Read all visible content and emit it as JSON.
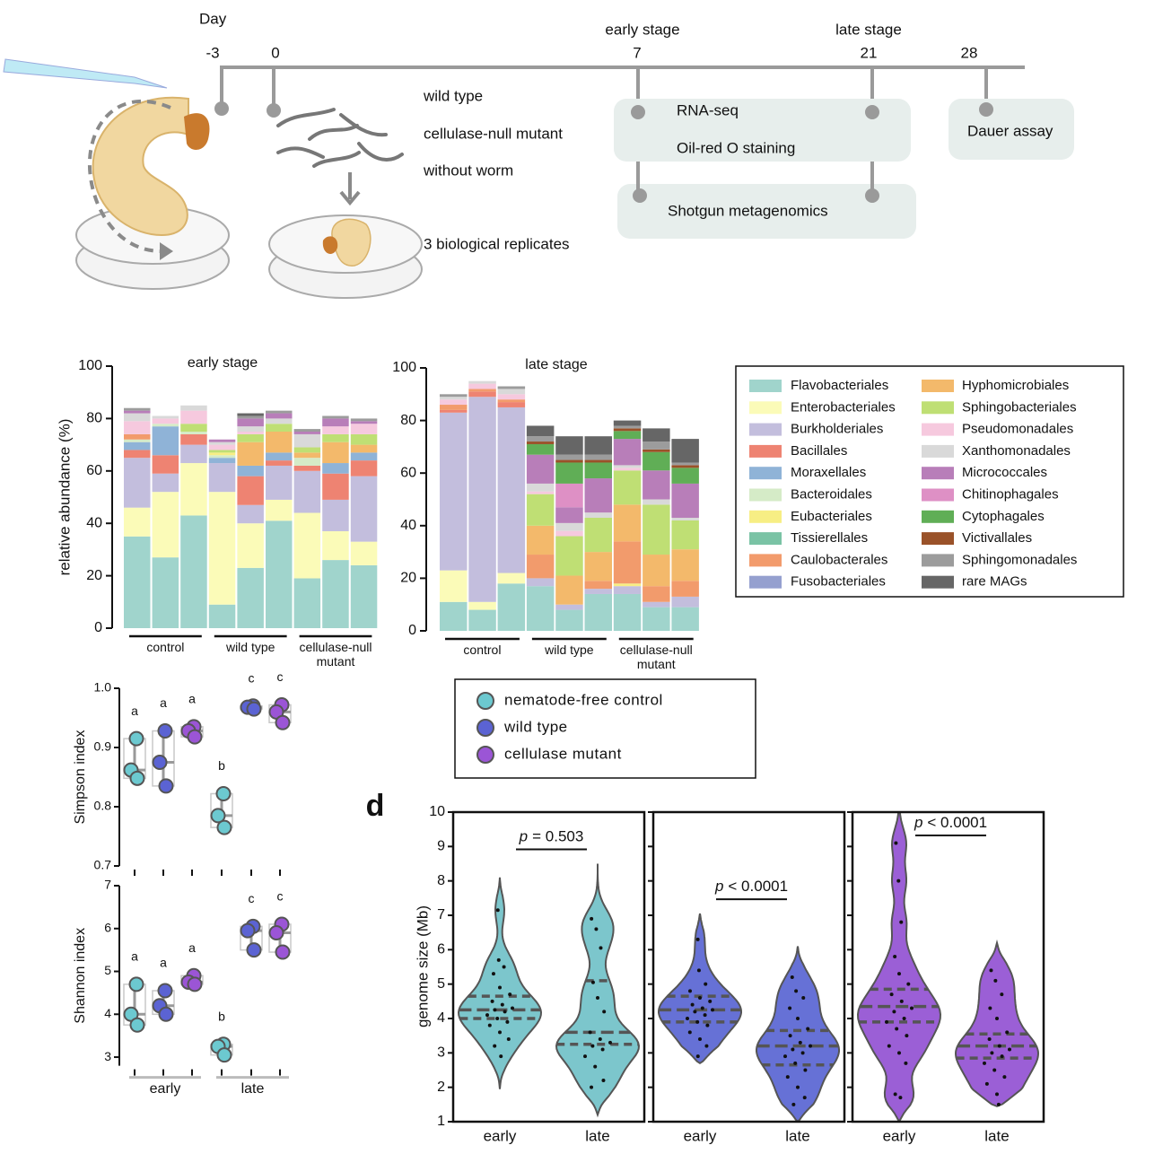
{
  "diagram": {
    "day_label": "Day",
    "days": [
      "-3",
      "0",
      "7",
      "21",
      "28"
    ],
    "stages": [
      "early stage",
      "late stage"
    ],
    "conditions": [
      "wild type",
      "cellulase-null mutant",
      "without worm"
    ],
    "replicates": "3 biological replicates",
    "assays": [
      "RNA-seq",
      "Oil-red O staining",
      "Shotgun metagenomics",
      "Dauer assay"
    ]
  },
  "chart_data": [
    {
      "type": "bar",
      "stacked": true,
      "y_label": "relative abundance (%)",
      "panels": [
        {
          "title": "early stage"
        },
        {
          "title": "late stage"
        }
      ],
      "groups": [
        "control",
        "wild type",
        "cellulase-null mutant"
      ],
      "ylim": [
        0,
        100
      ],
      "yticks": [
        0,
        20,
        40,
        60,
        80,
        100
      ],
      "series": [
        {
          "name": "Flavobacteriales",
          "color": "#a0d4cc",
          "values": [
            [
              35,
              27,
              43,
              9,
              23,
              41,
              19,
              26,
              24
            ],
            [
              11,
              8,
              18,
              17,
              8,
              14,
              14,
              9,
              9
            ]
          ]
        },
        {
          "name": "Enterobacteriales",
          "color": "#fbfbb8",
          "values": [
            [
              11,
              25,
              20,
              43,
              17,
              8,
              25,
              11,
              9
            ],
            [
              12,
              3,
              4,
              0,
              0,
              0,
              0,
              0,
              0
            ]
          ]
        },
        {
          "name": "Burkholderiales",
          "color": "#c3bedd",
          "values": [
            [
              19,
              7,
              7,
              11,
              7,
              13,
              16,
              12,
              25
            ],
            [
              60,
              78,
              63,
              3,
              2,
              2,
              3,
              2,
              4
            ]
          ]
        },
        {
          "name": "Bacillales",
          "color": "#ee8372",
          "values": [
            [
              3,
              7,
              4,
              0,
              11,
              2,
              2,
              10,
              6
            ],
            [
              1,
              2,
              2,
              0,
              0,
              0,
              0,
              0,
              0
            ]
          ]
        },
        {
          "name": "Moraxellales",
          "color": "#8fb3d7",
          "values": [
            [
              3,
              11,
              0,
              2,
              4,
              3,
              0,
              4,
              3
            ],
            [
              0,
              0,
              0,
              0,
              0,
              0,
              0,
              0,
              0
            ]
          ]
        },
        {
          "name": "Bacteroidales",
          "color": "#d5ebc7",
          "values": [
            [
              1,
              1,
              1,
              1,
              0,
              0,
              3,
              0,
              0
            ],
            [
              0,
              0,
              0,
              0,
              0,
              0,
              0,
              0,
              0
            ]
          ]
        },
        {
          "name": "Eubacteriales",
          "color": "#f7ee84",
          "values": [
            [
              0,
              0,
              0,
              1,
              0,
              0,
              0,
              0,
              0
            ],
            [
              0,
              0,
              0,
              0,
              0,
              0,
              1,
              0,
              0
            ]
          ]
        },
        {
          "name": "Tissierellales",
          "color": "#7ac3a5",
          "values": [
            [
              0,
              0,
              0,
              0,
              0,
              0,
              0,
              0,
              0
            ],
            [
              0,
              0,
              0,
              0,
              0,
              0,
              0,
              0,
              0
            ]
          ]
        },
        {
          "name": "Caulobacterales",
          "color": "#f29b6c",
          "values": [
            [
              2,
              0,
              0,
              0,
              0,
              0,
              0,
              0,
              0
            ],
            [
              2,
              1,
              1,
              9,
              0,
              3,
              16,
              6,
              6
            ]
          ]
        },
        {
          "name": "Fusobacteriales",
          "color": "#95a0cf",
          "values": [
            [
              0,
              0,
              0,
              0,
              0,
              0,
              0,
              0,
              0
            ],
            [
              0,
              0,
              0,
              0,
              0,
              0,
              0,
              0,
              0
            ]
          ]
        },
        {
          "name": "Hyphomicrobiales",
          "color": "#f3b96b",
          "values": [
            [
              0,
              0,
              0,
              0,
              9,
              8,
              2,
              8,
              3
            ],
            [
              0,
              0,
              0,
              11,
              11,
              11,
              14,
              12,
              12
            ]
          ]
        },
        {
          "name": "Sphingobacteriales",
          "color": "#bfdf74",
          "values": [
            [
              0,
              0,
              3,
              1,
              3,
              3,
              2,
              3,
              4
            ],
            [
              0,
              0,
              0,
              12,
              15,
              13,
              13,
              19,
              11
            ]
          ]
        },
        {
          "name": "Pseudomonadales",
          "color": "#f6c9de",
          "values": [
            [
              5,
              2,
              5,
              2,
              1,
              0,
              0,
              3,
              4
            ],
            [
              2,
              2,
              2,
              1,
              2,
              0,
              1,
              0,
              0
            ]
          ]
        },
        {
          "name": "Xanthomonadales",
          "color": "#d9d9d9",
          "values": [
            [
              3,
              1,
              2,
              1,
              2,
              2,
              5,
              0,
              0
            ],
            [
              1,
              1,
              2,
              3,
              3,
              2,
              1,
              2,
              1
            ]
          ]
        },
        {
          "name": "Micrococcales",
          "color": "#b87eb9",
          "values": [
            [
              1,
              0,
              0,
              1,
              3,
              2,
              1,
              3,
              1
            ],
            [
              0,
              0,
              0,
              11,
              6,
              13,
              10,
              11,
              13
            ]
          ]
        },
        {
          "name": "Chitinophagales",
          "color": "#de90c5",
          "values": [
            [
              0,
              0,
              0,
              0,
              0,
              0,
              0,
              0,
              0
            ],
            [
              0,
              0,
              0,
              0,
              9,
              0,
              0,
              0,
              0
            ]
          ]
        },
        {
          "name": "Cytophagales",
          "color": "#60ae56",
          "values": [
            [
              0,
              0,
              0,
              0,
              0,
              0,
              0,
              0,
              0
            ],
            [
              0,
              0,
              0,
              4,
              8,
              6,
              3,
              7,
              6
            ]
          ]
        },
        {
          "name": "Victivallales",
          "color": "#9a5229",
          "values": [
            [
              0,
              0,
              0,
              0,
              0,
              0,
              0,
              0,
              0
            ],
            [
              0,
              0,
              0,
              1,
              1,
              1,
              1,
              1,
              1
            ]
          ]
        },
        {
          "name": "Sphingomonadales",
          "color": "#9c9c9c",
          "values": [
            [
              1,
              0,
              0,
              0,
              1,
              1,
              1,
              1,
              1
            ],
            [
              1,
              0,
              1,
              2,
              2,
              2,
              1,
              3,
              1
            ]
          ]
        },
        {
          "name": "rare MAGs",
          "color": "#666666",
          "values": [
            [
              0,
              0,
              0,
              0,
              1,
              0,
              0,
              0,
              0
            ],
            [
              0,
              0,
              0,
              4,
              7,
              7,
              2,
              5,
              9
            ]
          ]
        }
      ]
    },
    {
      "type": "dot",
      "y_label": "Simpson index",
      "ylim": [
        0.7,
        1
      ],
      "yticks": [
        0.7,
        0.8,
        0.9,
        {
          "value": 1,
          "label": "1.0"
        }
      ],
      "letters": [
        "a",
        "a",
        "a",
        "b",
        "c",
        "c"
      ],
      "series": [
        {
          "name": "nematode-free control",
          "color": "#6cc9d0",
          "values": [
            [
              0.915,
              0.862,
              0.848
            ],
            [
              0.822,
              0.785,
              0.765
            ]
          ]
        },
        {
          "name": "wild type",
          "color": "#5b63d3",
          "values": [
            [
              0.928,
              0.875,
              0.835
            ],
            [
              0.97,
              0.968,
              0.965
            ]
          ]
        },
        {
          "name": "cellulase mutant",
          "color": "#9b55d6",
          "values": [
            [
              0.935,
              0.928,
              0.918
            ],
            [
              0.972,
              0.96,
              0.942
            ]
          ]
        }
      ]
    },
    {
      "type": "dot",
      "y_label": "Shannon index",
      "ylim": [
        2.8,
        7
      ],
      "yticks": [
        3,
        4,
        5,
        6,
        7
      ],
      "categories": [
        "early",
        "late"
      ],
      "letters": [
        "a",
        "a",
        "a",
        "b",
        "c",
        "c"
      ],
      "series": [
        {
          "color": "#6cc9d0",
          "values": [
            [
              4.7,
              4.0,
              3.75
            ],
            [
              3.3,
              3.25,
              3.05
            ]
          ]
        },
        {
          "color": "#5b63d3",
          "values": [
            [
              4.55,
              4.2,
              4.0
            ],
            [
              6.05,
              5.95,
              5.5
            ]
          ]
        },
        {
          "color": "#9b55d6",
          "values": [
            [
              4.9,
              4.75,
              4.7
            ],
            [
              6.1,
              5.9,
              5.45
            ]
          ]
        }
      ]
    },
    {
      "type": "violin",
      "label": "d",
      "y_label": "genome size (Mb)",
      "ylim": [
        1,
        10
      ],
      "yticks": [
        1,
        2,
        3,
        4,
        5,
        6,
        7,
        8,
        9,
        10
      ],
      "categories": [
        "early",
        "late"
      ],
      "panels": [
        {
          "color": "#7cc6cc",
          "p_symbol": "p",
          "p_text": "= 0.503",
          "violins": [
            {
              "values": [
                7.15,
                5.7,
                5.5,
                5.3,
                4.9,
                4.7,
                4.5,
                4.4,
                4.3,
                4.25,
                4.2,
                4.1,
                4.0,
                3.9,
                3.8,
                3.6,
                3.4,
                3.2,
                2.9
              ],
              "quartiles": [
                4.0,
                4.25,
                4.65
              ],
              "range": [
                1.95,
                8.1
              ]
            },
            {
              "values": [
                6.9,
                6.6,
                6.05,
                5.05,
                4.6,
                4.2,
                3.6,
                3.4,
                3.3,
                3.2,
                3.1,
                2.9,
                2.6,
                2.2,
                2.0
              ],
              "quartiles": [
                3.25,
                3.6,
                5.1
              ],
              "range": [
                1.2,
                8.5
              ]
            }
          ]
        },
        {
          "color": "#6671d6",
          "p_symbol": "p",
          "p_text": "< 0.0001",
          "violins": [
            {
              "values": [
                6.3,
                5.4,
                5.0,
                4.8,
                4.6,
                4.5,
                4.4,
                4.3,
                4.25,
                4.2,
                4.1,
                4.0,
                3.9,
                3.8,
                3.6,
                3.4,
                3.2,
                2.9
              ],
              "quartiles": [
                3.9,
                4.25,
                4.65
              ],
              "range": [
                2.7,
                7.05
              ]
            },
            {
              "values": [
                5.2,
                4.8,
                4.6,
                4.3,
                4.0,
                3.7,
                3.5,
                3.3,
                3.2,
                3.1,
                3.0,
                2.9,
                2.7,
                2.5,
                2.3,
                2.0,
                1.7,
                1.5
              ],
              "quartiles": [
                2.65,
                3.2,
                3.65
              ],
              "range": [
                1.0,
                6.1
              ]
            }
          ]
        },
        {
          "color": "#9b5fd6",
          "p_symbol": "p",
          "p_text": "< 0.0001",
          "violins": [
            {
              "values": [
                9.1,
                8.0,
                6.8,
                5.8,
                5.3,
                5.0,
                4.7,
                4.5,
                4.3,
                4.2,
                4.0,
                3.9,
                3.7,
                3.5,
                3.2,
                3.0,
                2.7,
                1.8,
                1.7
              ],
              "quartiles": [
                3.9,
                4.35,
                4.85
              ],
              "range": [
                1.0,
                10.6
              ]
            },
            {
              "values": [
                5.4,
                5.1,
                4.7,
                4.3,
                4.0,
                3.6,
                3.4,
                3.2,
                3.1,
                3.0,
                2.9,
                2.7,
                2.5,
                2.3,
                2.1,
                1.8,
                1.5
              ],
              "quartiles": [
                2.85,
                3.2,
                3.55
              ],
              "range": [
                1.45,
                6.2
              ]
            }
          ]
        }
      ]
    }
  ]
}
